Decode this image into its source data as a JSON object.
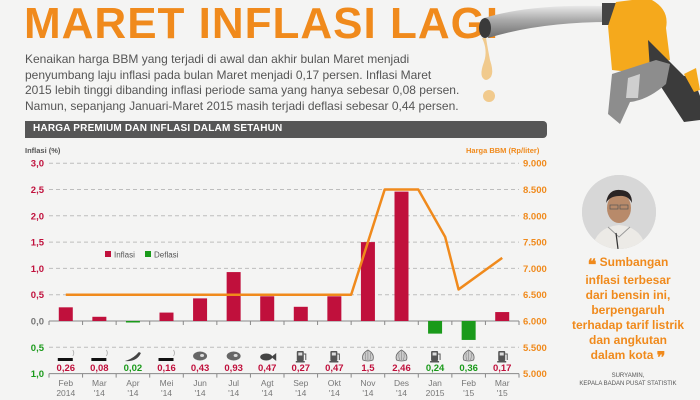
{
  "header": {
    "title": "MARET INFLASI LAGI",
    "lede": [
      "Kenaikan harga BBM yang terjadi di awal dan akhir bulan Maret menjadi",
      "penyumbang laju inflasi pada bulan Maret menjadi 0,17 persen. Inflasi Maret",
      "2015 lebih tinggi dibanding inflasi periode sama yang hanya sebesar 0,08 persen.",
      "Namun, sepanjang Januari-Maret 2015 masih terjadi deflasi sebesar 0,44 persen."
    ]
  },
  "section_title": "HARGA PREMIUM DAN INFLASI DALAM SETAHUN",
  "colors": {
    "accent": "#f08a1c",
    "inflasi": "#c0103c",
    "deflasi": "#1a9a1a",
    "header_bar": "#565656",
    "grid": "#bdbdbd",
    "text": "#555555"
  },
  "quote": {
    "lines": [
      "Sumbangan",
      "inflasi terbesar",
      "dari bensin ini,",
      "berpengaruh",
      "terhadap tarif listrik",
      "dan angkutan",
      "dalam kota"
    ],
    "speaker": "SURYAMIN,",
    "speaker_title": "KEPALA BADAN PUSAT STATISTIK"
  },
  "chart_data": {
    "type": "bar",
    "title": "HARGA PREMIUM DAN INFLASI DALAM SETAHUN",
    "xlabel": "",
    "ylabel": "Inflasi (%)",
    "ylabel_right": "Harga BBM (Rp/liter)",
    "categories": [
      "Feb 2014",
      "Mar '14",
      "Apr '14",
      "Mei '14",
      "Jun '14",
      "Jul '14",
      "Agt '14",
      "Sep '14",
      "Okt '14",
      "Nov '14",
      "Des '14",
      "Jan 2015",
      "Feb '15",
      "Mar '15"
    ],
    "category_lines": [
      [
        "Feb",
        "2014"
      ],
      [
        "Mar",
        "'14"
      ],
      [
        "Apr",
        "'14"
      ],
      [
        "Mei",
        "'14"
      ],
      [
        "Jun",
        "'14"
      ],
      [
        "Jul",
        "'14"
      ],
      [
        "Agt",
        "'14"
      ],
      [
        "Sep",
        "'14"
      ],
      [
        "Okt",
        "'14"
      ],
      [
        "Nov",
        "'14"
      ],
      [
        "Des",
        "'14"
      ],
      [
        "Jan",
        "2015"
      ],
      [
        "Feb",
        "'15"
      ],
      [
        "Mar",
        "'15"
      ]
    ],
    "series": [
      {
        "name": "Inflasi/Deflasi (%)",
        "axis": "left",
        "type": "bar",
        "values": [
          0.26,
          0.08,
          -0.02,
          0.16,
          0.43,
          0.93,
          0.47,
          0.27,
          0.47,
          1.5,
          2.46,
          -0.24,
          -0.36,
          0.17
        ]
      },
      {
        "name": "Harga BBM (Rp/liter)",
        "axis": "right",
        "type": "line",
        "points": [
          {
            "x": 0,
            "y": 6500
          },
          {
            "x": 8.5,
            "y": 6500
          },
          {
            "x": 9.5,
            "y": 8500
          },
          {
            "x": 10.5,
            "y": 8500
          },
          {
            "x": 11.3,
            "y": 7600
          },
          {
            "x": 11.7,
            "y": 6600
          },
          {
            "x": 13.0,
            "y": 7200
          }
        ]
      }
    ],
    "value_labels": [
      "0,26",
      "0,08",
      "0,02",
      "0,16",
      "0,43",
      "0,93",
      "0,47",
      "0,27",
      "0,47",
      "1,5",
      "2,46",
      "0,24",
      "0,36",
      "0,17"
    ],
    "label_kinds": [
      "inflasi",
      "inflasi",
      "deflasi",
      "inflasi",
      "inflasi",
      "inflasi",
      "inflasi",
      "inflasi",
      "inflasi",
      "inflasi",
      "inflasi",
      "deflasi",
      "deflasi",
      "inflasi"
    ],
    "commodity_icons": [
      "cigarette-icon",
      "cigarette-icon",
      "chili-icon",
      "cigarette-icon",
      "meat-icon",
      "meat-icon",
      "fish-icon",
      "fuel-pump-icon",
      "fuel-pump-icon",
      "shallot-icon",
      "shallot-icon",
      "fuel-pump-icon",
      "shallot-icon",
      "fuel-pump-icon"
    ],
    "left_ticks": [
      "3,0",
      "2,5",
      "2,0",
      "1,5",
      "1,0",
      "0,5",
      "0,0",
      "0,5",
      "1,0"
    ],
    "left_tick_kinds": [
      "inflasi",
      "inflasi",
      "inflasi",
      "inflasi",
      "inflasi",
      "inflasi",
      "neutral",
      "deflasi",
      "deflasi"
    ],
    "right_ticks": [
      "9.000",
      "8.500",
      "8.000",
      "7.500",
      "7.000",
      "6.500",
      "6.000",
      "5.500",
      "5.000"
    ],
    "ylim": [
      -1.0,
      3.0
    ],
    "ylim_right": [
      5000,
      9000
    ],
    "legend": [
      {
        "label": "Inflasi",
        "color": "#c0103c"
      },
      {
        "label": "Deflasi",
        "color": "#1a9a1a"
      }
    ],
    "legend_position": "upper-left inside",
    "grid": true
  }
}
